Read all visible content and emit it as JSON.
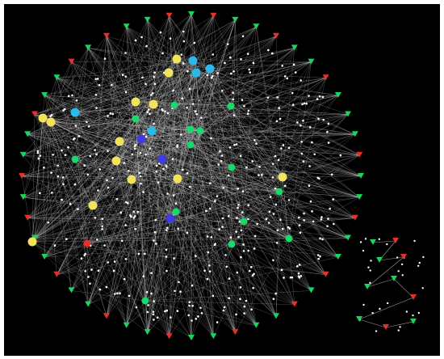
{
  "graph": {
    "background": "#000000",
    "edge_color": "#d9d9d9",
    "dot_color": "#ffffff",
    "hubs": [
      {
        "color": "#f3e25b"
      },
      {
        "color": "#f3e25b"
      },
      {
        "color": "#f3e25b"
      },
      {
        "color": "#f3e25b"
      },
      {
        "color": "#f3e25b"
      },
      {
        "color": "#f3e25b"
      },
      {
        "color": "#f3e25b"
      },
      {
        "color": "#f3e25b"
      },
      {
        "color": "#f3e25b"
      },
      {
        "color": "#f3e25b"
      },
      {
        "color": "#f3e25b"
      },
      {
        "color": "#f3e25b"
      },
      {
        "color": "#f3e25b"
      },
      {
        "color": "#2bb8ea"
      },
      {
        "color": "#2bb8ea"
      },
      {
        "color": "#2bb8ea"
      },
      {
        "color": "#2bb8ea"
      },
      {
        "color": "#2bb8ea"
      },
      {
        "color": "#3c3ce2"
      },
      {
        "color": "#3c3ce2"
      },
      {
        "color": "#3c3ce2"
      },
      {
        "color": "#18d96c"
      },
      {
        "color": "#18d96c"
      },
      {
        "color": "#18d96c"
      },
      {
        "color": "#18d96c"
      },
      {
        "color": "#18d96c"
      },
      {
        "color": "#18d96c"
      },
      {
        "color": "#18d96c"
      },
      {
        "color": "#18d96c"
      },
      {
        "color": "#18d96c"
      },
      {
        "color": "#18d96c"
      },
      {
        "color": "#18d96c"
      },
      {
        "color": "#18d96c"
      },
      {
        "color": "#18d96c"
      },
      {
        "color": "#18d96c"
      },
      {
        "color": "#e8302b"
      }
    ],
    "periphery": [
      {
        "color": "#17d65f"
      },
      {
        "color": "#e8302b"
      },
      {
        "color": "#17d65f"
      },
      {
        "color": "#17d65f"
      },
      {
        "color": "#e8302b"
      },
      {
        "color": "#17d65f"
      },
      {
        "color": "#17d65f"
      },
      {
        "color": "#e8302b"
      },
      {
        "color": "#17d65f"
      },
      {
        "color": "#17d65f"
      },
      {
        "color": "#17d65f"
      },
      {
        "color": "#e8302b"
      },
      {
        "color": "#17d65f"
      },
      {
        "color": "#17d65f"
      },
      {
        "color": "#e8302b"
      },
      {
        "color": "#17d65f"
      },
      {
        "color": "#17d65f"
      },
      {
        "color": "#e8302b"
      },
      {
        "color": "#17d65f"
      },
      {
        "color": "#e8302b"
      },
      {
        "color": "#17d65f"
      },
      {
        "color": "#17d65f"
      },
      {
        "color": "#e8302b"
      },
      {
        "color": "#17d65f"
      },
      {
        "color": "#17d65f"
      },
      {
        "color": "#e8302b"
      },
      {
        "color": "#17d65f"
      },
      {
        "color": "#17d65f"
      },
      {
        "color": "#e8302b"
      },
      {
        "color": "#17d65f"
      },
      {
        "color": "#17d65f"
      },
      {
        "color": "#e8302b"
      },
      {
        "color": "#17d65f"
      },
      {
        "color": "#17d65f"
      },
      {
        "color": "#e8302b"
      },
      {
        "color": "#17d65f"
      },
      {
        "color": "#e8302b"
      },
      {
        "color": "#17d65f"
      },
      {
        "color": "#17d65f"
      },
      {
        "color": "#e8302b"
      },
      {
        "color": "#17d65f"
      },
      {
        "color": "#17d65f"
      },
      {
        "color": "#e8302b"
      },
      {
        "color": "#17d65f"
      },
      {
        "color": "#e8302b"
      },
      {
        "color": "#17d65f"
      },
      {
        "color": "#17d65f"
      },
      {
        "color": "#e8302b"
      }
    ],
    "cluster": [
      {
        "color": "#17d65f"
      },
      {
        "color": "#e8302b"
      },
      {
        "color": "#17d65f"
      },
      {
        "color": "#e8302b"
      },
      {
        "color": "#17d65f"
      },
      {
        "color": "#17d65f"
      },
      {
        "color": "#e8302b"
      },
      {
        "color": "#17d65f"
      },
      {
        "color": "#e8302b"
      },
      {
        "color": "#17d65f"
      }
    ]
  }
}
